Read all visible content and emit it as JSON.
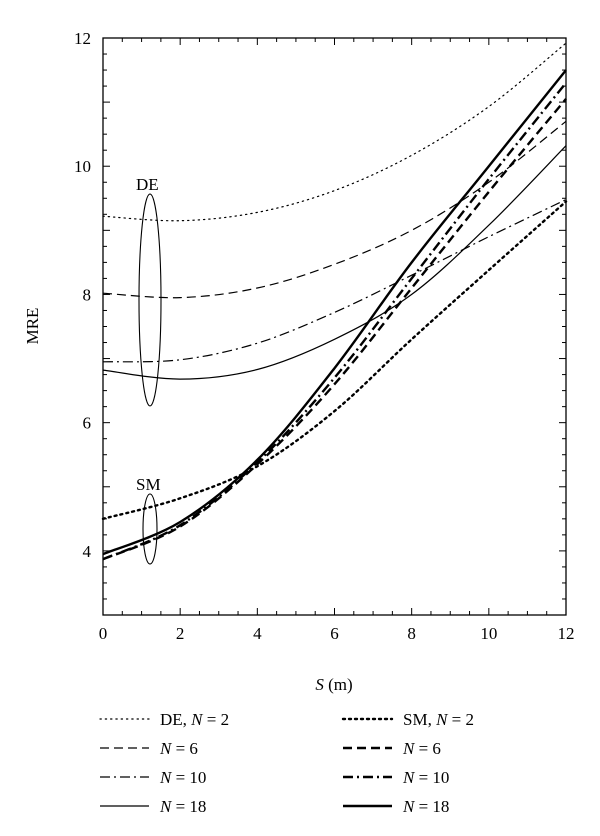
{
  "chart_data": {
    "type": "line",
    "title": "",
    "xlabel": {
      "var": "S",
      "unit": " (m)"
    },
    "ylabel": "MRE",
    "xlim": [
      0,
      12
    ],
    "ylim": [
      3,
      12
    ],
    "xticks": [
      "0",
      "2",
      "4",
      "6",
      "8",
      "10",
      "12"
    ],
    "yticks": [
      "4",
      "6",
      "8",
      "10",
      "12"
    ],
    "grid": false,
    "legend_placement": "below",
    "group_labels": [
      "DE",
      "SM"
    ],
    "series": [
      {
        "legend": {
          "prefix": "DE, ",
          "var": "N",
          "eq": " = 2"
        },
        "group": "DE",
        "style": "dotted",
        "weight": "thin",
        "x": [
          0,
          2,
          4,
          6,
          8,
          10,
          12
        ],
        "y": [
          9.22,
          9.15,
          9.28,
          9.62,
          10.17,
          10.93,
          11.92
        ]
      },
      {
        "legend": {
          "prefix": "",
          "var": "N",
          "eq": " = 6"
        },
        "group": "DE",
        "style": "dashed",
        "weight": "thin",
        "x": [
          0,
          2,
          4,
          6,
          8,
          10,
          12
        ],
        "y": [
          8.02,
          7.95,
          8.1,
          8.47,
          9.0,
          9.75,
          10.7
        ]
      },
      {
        "legend": {
          "prefix": "",
          "var": "N",
          "eq": " = 10"
        },
        "group": "DE",
        "style": "dashdot",
        "weight": "thin",
        "x": [
          0,
          2,
          4,
          6,
          8,
          10,
          12
        ],
        "y": [
          6.95,
          6.98,
          7.24,
          7.72,
          8.3,
          8.9,
          9.48
        ]
      },
      {
        "legend": {
          "prefix": "",
          "var": "N",
          "eq": " = 18"
        },
        "group": "DE",
        "style": "solid",
        "weight": "thin",
        "x": [
          0,
          2,
          4,
          6,
          8,
          10,
          12
        ],
        "y": [
          6.82,
          6.68,
          6.83,
          7.3,
          8.0,
          9.08,
          10.32
        ]
      },
      {
        "legend": {
          "prefix": "SM, ",
          "var": "N",
          "eq": " = 2"
        },
        "group": "SM",
        "style": "dotted",
        "weight": "thick",
        "x": [
          0,
          2,
          4,
          6,
          8,
          10,
          12
        ],
        "y": [
          4.5,
          4.82,
          5.32,
          6.18,
          7.3,
          8.38,
          9.45
        ]
      },
      {
        "legend": {
          "prefix": "",
          "var": "N",
          "eq": " = 6"
        },
        "group": "SM",
        "style": "dashed",
        "weight": "thick",
        "x": [
          0,
          2,
          4,
          6,
          8,
          10,
          12
        ],
        "y": [
          3.87,
          4.38,
          5.35,
          6.6,
          8.1,
          9.6,
          11.05
        ]
      },
      {
        "legend": {
          "prefix": "",
          "var": "N",
          "eq": " = 10"
        },
        "group": "SM",
        "style": "dashdot",
        "weight": "thick",
        "x": [
          0,
          2,
          4,
          6,
          8,
          10,
          12
        ],
        "y": [
          3.87,
          4.4,
          5.38,
          6.7,
          8.25,
          9.8,
          11.3
        ]
      },
      {
        "legend": {
          "prefix": "",
          "var": "N",
          "eq": " = 18"
        },
        "group": "SM",
        "style": "solid",
        "weight": "thick",
        "x": [
          0,
          2,
          4,
          6,
          8,
          10,
          12
        ],
        "y": [
          3.95,
          4.45,
          5.42,
          6.85,
          8.5,
          10.0,
          11.5
        ]
      }
    ]
  }
}
